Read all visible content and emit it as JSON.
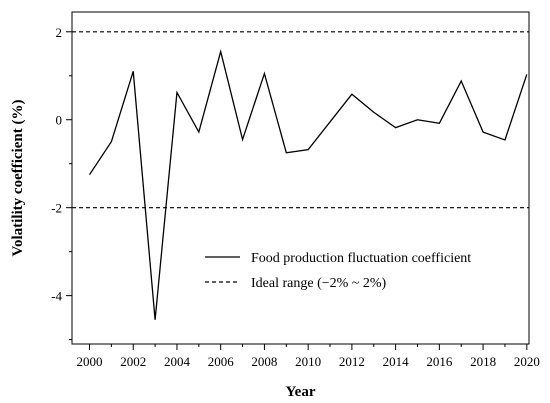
{
  "chart_data": {
    "type": "line",
    "xlabel": "Year",
    "ylabel": "Volatility coefficient (%)",
    "xlim": [
      1999.2,
      2020.1
    ],
    "ylim": [
      -5.1,
      2.45
    ],
    "x_ticks": [
      2000,
      2002,
      2004,
      2006,
      2008,
      2010,
      2012,
      2014,
      2016,
      2018,
      2020
    ],
    "x_tick_labels": [
      "2000",
      "2002",
      "2004",
      "2006",
      "2008",
      "2010",
      "2012",
      "2014",
      "2016",
      "2018",
      "2020"
    ],
    "y_ticks": [
      -4,
      -2,
      0,
      2
    ],
    "y_tick_labels": [
      "-4",
      "-2",
      "0",
      "2"
    ],
    "legend_position": "lower-right",
    "series": [
      {
        "name": "Food production fluctuation coefficient",
        "style": "solid",
        "color": "#000000",
        "x": [
          2000,
          2001,
          2002,
          2003,
          2004,
          2005,
          2006,
          2007,
          2008,
          2009,
          2010,
          2011,
          2012,
          2013,
          2014,
          2015,
          2016,
          2017,
          2018,
          2019,
          2020
        ],
        "values": [
          -1.25,
          -0.5,
          1.1,
          -4.55,
          0.62,
          -0.28,
          1.55,
          -0.45,
          1.05,
          -0.75,
          -0.68,
          -0.05,
          0.58,
          0.17,
          -0.18,
          0.0,
          -0.08,
          0.88,
          -0.28,
          -0.46,
          1.03
        ]
      },
      {
        "name": "Ideal range (−2% ~ 2%)",
        "style": "dashed",
        "color": "#000000",
        "bounds": [
          -2,
          2
        ]
      }
    ]
  }
}
